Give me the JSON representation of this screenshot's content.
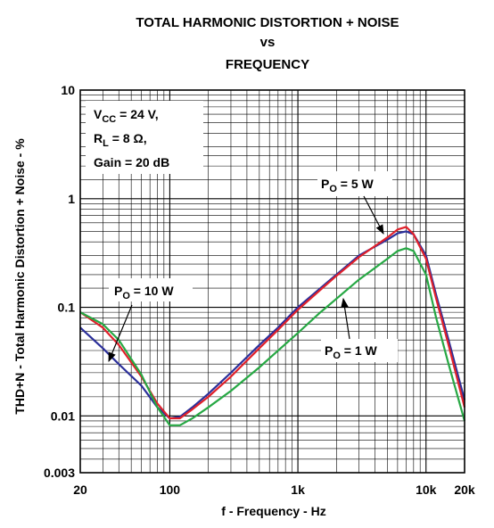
{
  "chart_data": {
    "type": "line",
    "title_lines": [
      "TOTAL HARMONIC DISTORTION + NOISE",
      "vs",
      "FREQUENCY"
    ],
    "xlabel": "f - Frequency - Hz",
    "ylabel": "THD+N - Total Harmonic Distortion + Noise - %",
    "x_scale": "log",
    "y_scale": "log",
    "xlim": [
      20,
      20000
    ],
    "ylim": [
      0.003,
      10
    ],
    "grid": true,
    "x_ticks": [
      {
        "value": 20,
        "label": "20"
      },
      {
        "value": 100,
        "label": "100"
      },
      {
        "value": 1000,
        "label": "1k"
      },
      {
        "value": 10000,
        "label": "10k"
      },
      {
        "value": 20000,
        "label": "20k"
      }
    ],
    "y_ticks": [
      {
        "value": 10,
        "label": "10"
      },
      {
        "value": 1,
        "label": "1"
      },
      {
        "value": 0.1,
        "label": "0.1"
      },
      {
        "value": 0.01,
        "label": "0.01"
      },
      {
        "value": 0.003,
        "label": "0.003"
      }
    ],
    "conditions": {
      "vcc": {
        "pre": "V",
        "sub": "CC",
        "post": " = 24 V,"
      },
      "rl": {
        "pre": "R",
        "sub": "L",
        "post": " = 8 Ω,"
      },
      "gain": {
        "pre": "Gain = 20 dB",
        "sub": "",
        "post": ""
      }
    },
    "series": [
      {
        "name": "10 W",
        "label": {
          "pre": "P",
          "sub": "O",
          "post": " = 10 W"
        },
        "color": "#2b2f9a",
        "x": [
          20,
          30,
          40,
          60,
          80,
          100,
          120,
          150,
          200,
          300,
          500,
          700,
          1000,
          1500,
          2000,
          3000,
          5000,
          6000,
          7000,
          8000,
          10000,
          12000,
          15000,
          20000
        ],
        "y": [
          0.065,
          0.042,
          0.03,
          0.019,
          0.012,
          0.0095,
          0.0098,
          0.012,
          0.016,
          0.025,
          0.045,
          0.065,
          0.1,
          0.15,
          0.2,
          0.3,
          0.42,
          0.48,
          0.5,
          0.47,
          0.3,
          0.13,
          0.05,
          0.014
        ]
      },
      {
        "name": "5 W",
        "label": {
          "pre": "P",
          "sub": "O",
          "post": " = 5 W"
        },
        "color": "#e0202a",
        "x": [
          20,
          30,
          40,
          60,
          80,
          100,
          120,
          150,
          200,
          300,
          500,
          700,
          1000,
          1500,
          2000,
          3000,
          5000,
          6000,
          7000,
          8000,
          10000,
          12000,
          15000,
          20000
        ],
        "y": [
          0.09,
          0.065,
          0.045,
          0.023,
          0.013,
          0.0095,
          0.0095,
          0.0115,
          0.015,
          0.023,
          0.042,
          0.062,
          0.095,
          0.145,
          0.195,
          0.29,
          0.44,
          0.52,
          0.55,
          0.47,
          0.28,
          0.12,
          0.045,
          0.012
        ]
      },
      {
        "name": "1 W",
        "label": {
          "pre": "P",
          "sub": "O",
          "post": " = 1 W"
        },
        "color": "#27a844",
        "x": [
          20,
          30,
          40,
          60,
          80,
          100,
          120,
          150,
          200,
          300,
          500,
          700,
          1000,
          1500,
          2000,
          3000,
          5000,
          6000,
          7000,
          8000,
          10000,
          12000,
          15000,
          20000
        ],
        "y": [
          0.09,
          0.07,
          0.05,
          0.024,
          0.012,
          0.0082,
          0.0082,
          0.0095,
          0.012,
          0.017,
          0.028,
          0.04,
          0.058,
          0.09,
          0.12,
          0.18,
          0.28,
          0.33,
          0.35,
          0.33,
          0.2,
          0.08,
          0.03,
          0.009
        ]
      }
    ]
  }
}
